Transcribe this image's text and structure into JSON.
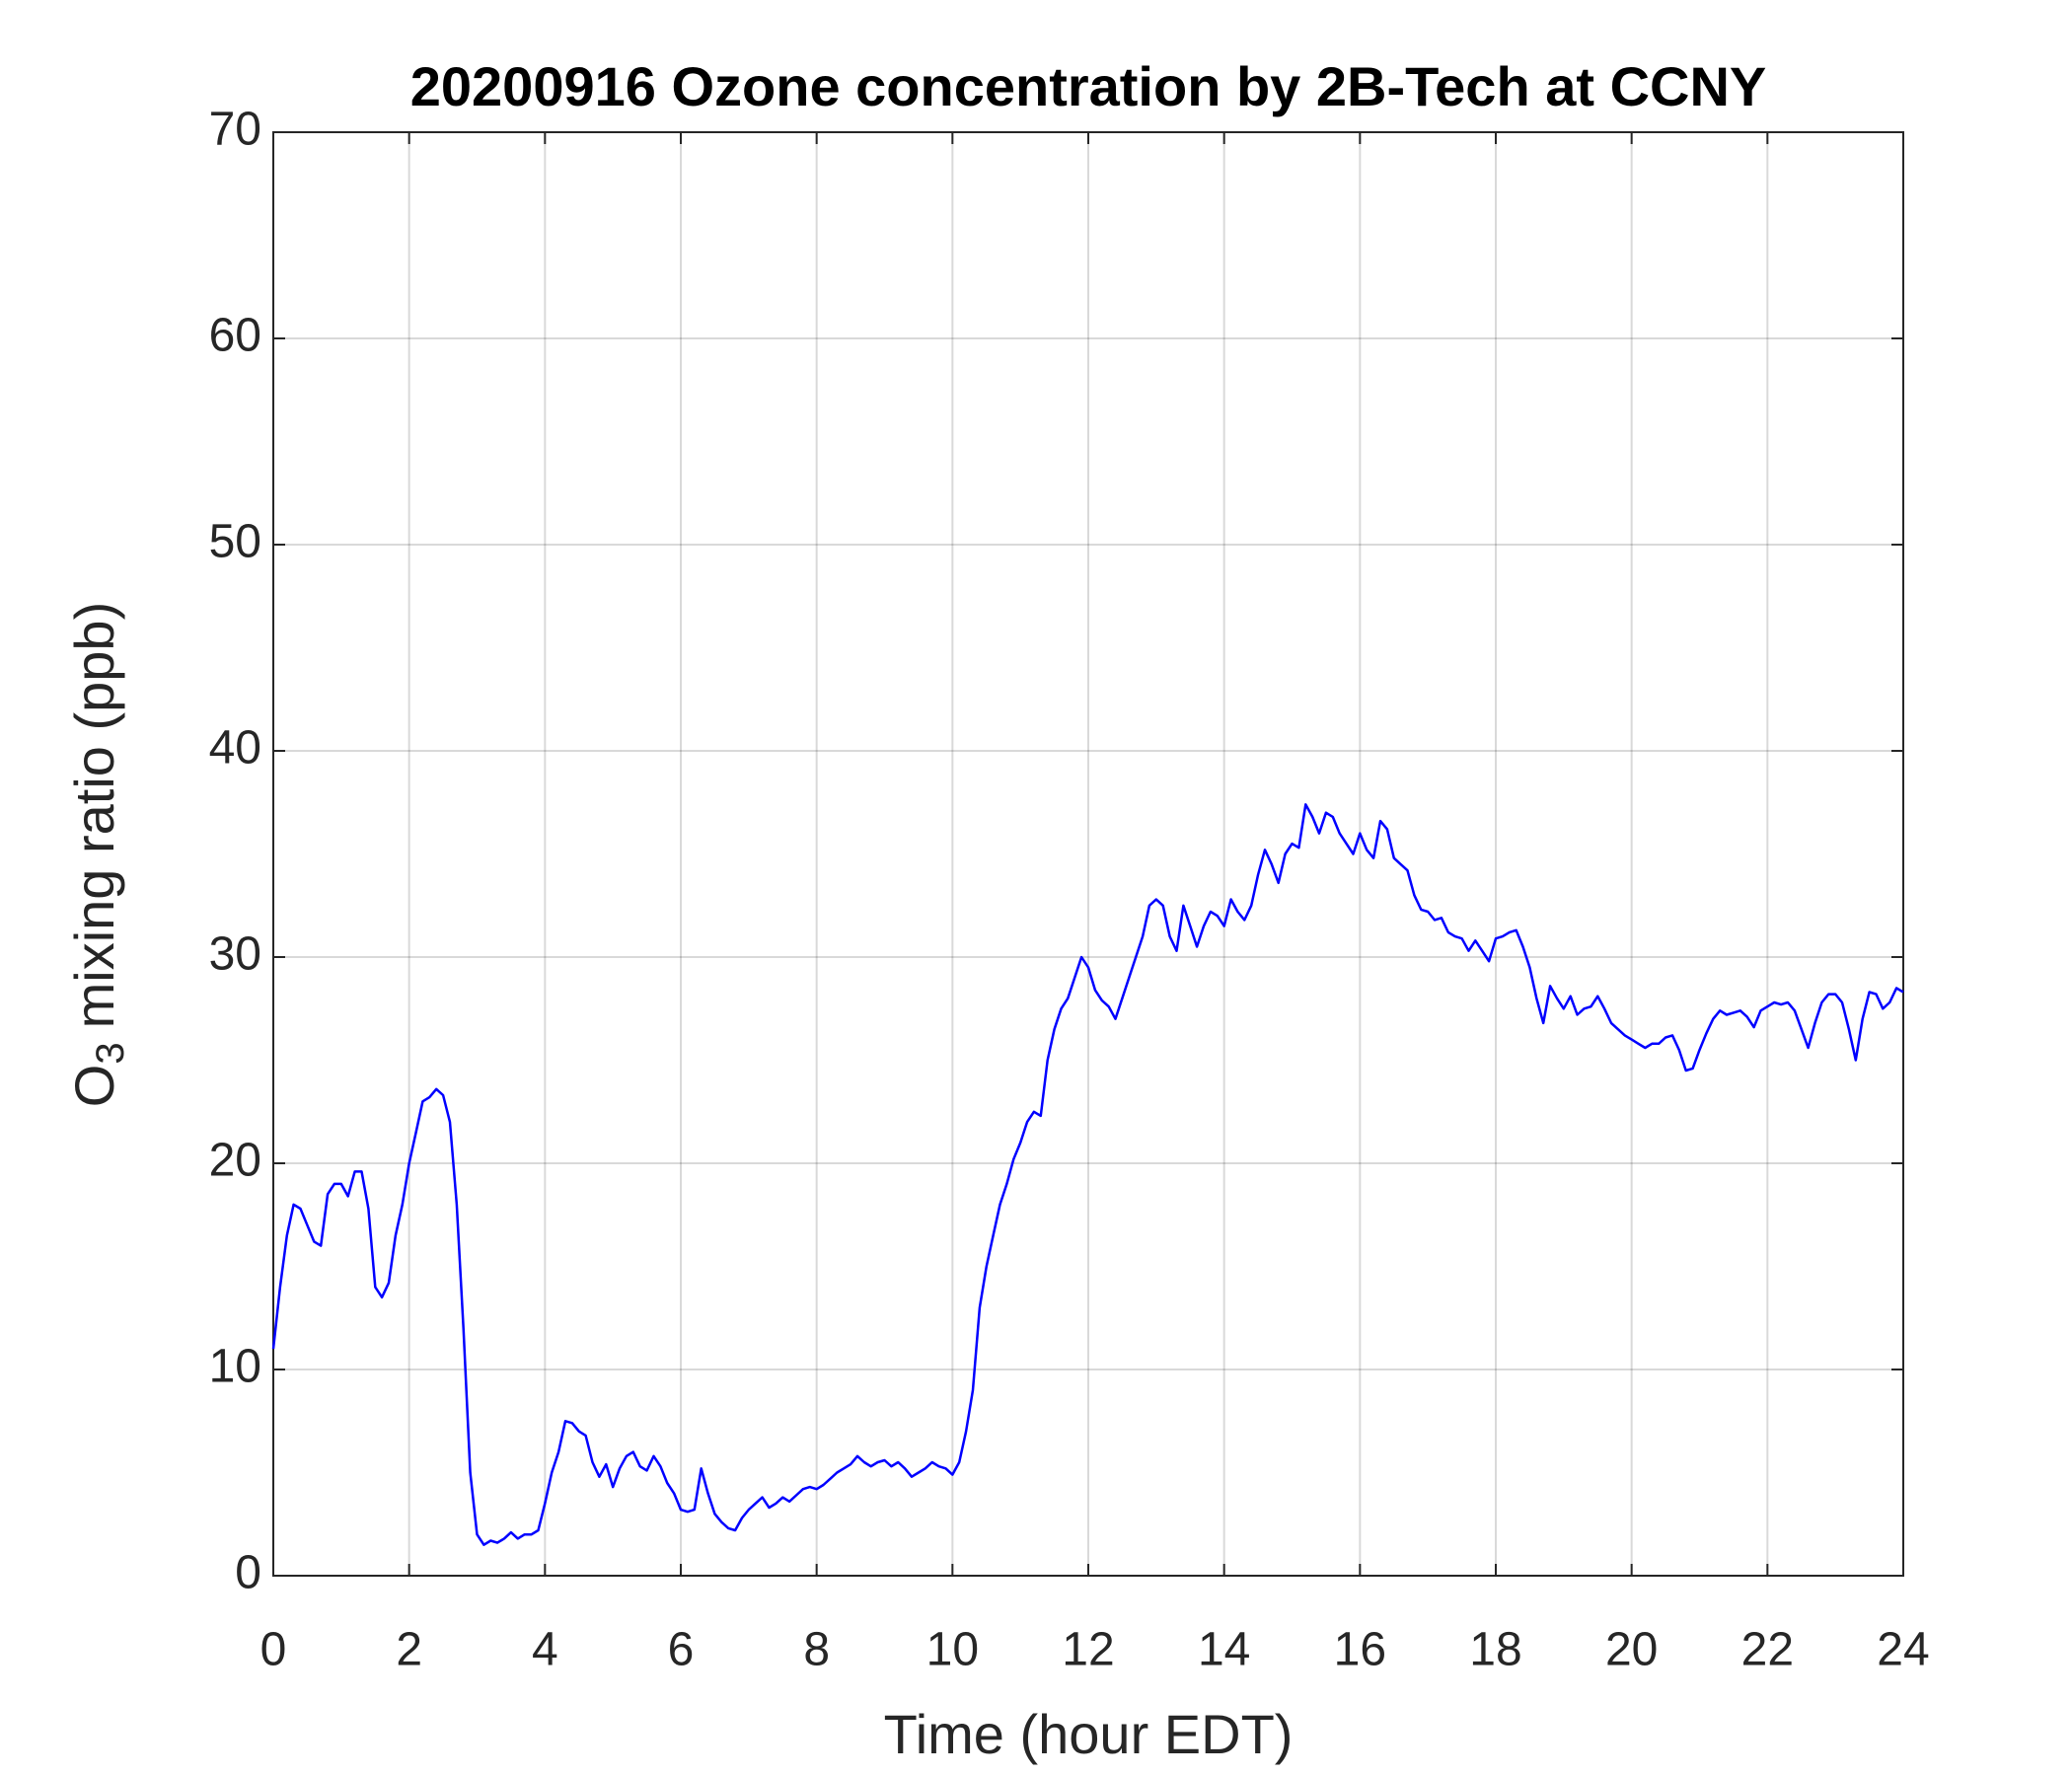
{
  "chart_data": {
    "type": "line",
    "title": "20200916 Ozone concentration by 2B-Tech at CCNY",
    "xlabel": "Time (hour EDT)",
    "ylabel": {
      "base": "O",
      "subscript": "3",
      "rest": "mixing ratio (ppb)"
    },
    "color": "#0000ff",
    "xlim": [
      0,
      24
    ],
    "xticks": [
      0,
      2,
      4,
      6,
      8,
      10,
      12,
      14,
      16,
      18,
      20,
      22,
      24
    ],
    "ylim": [
      0,
      70
    ],
    "yticks": [
      0,
      10,
      20,
      30,
      40,
      50,
      60,
      70
    ],
    "grid": true,
    "x": [
      0,
      0.1,
      0.2,
      0.3,
      0.4,
      0.5,
      0.6,
      0.7,
      0.8,
      0.9,
      1,
      1.1,
      1.2,
      1.3,
      1.4,
      1.5,
      1.6,
      1.7,
      1.8,
      1.9,
      2,
      2.1,
      2.2,
      2.3,
      2.4,
      2.5,
      2.6,
      2.7,
      2.8,
      2.9,
      3,
      3.1,
      3.2,
      3.3,
      3.4,
      3.5,
      3.6,
      3.7,
      3.8,
      3.9,
      4,
      4.1,
      4.2,
      4.3,
      4.4,
      4.5,
      4.6,
      4.7,
      4.8,
      4.9,
      5,
      5.1,
      5.2,
      5.3,
      5.4,
      5.5,
      5.6,
      5.7,
      5.8,
      5.9,
      6,
      6.1,
      6.2,
      6.3,
      6.4,
      6.5,
      6.6,
      6.7,
      6.8,
      6.9,
      7,
      7.1,
      7.2,
      7.3,
      7.4,
      7.5,
      7.6,
      7.7,
      7.8,
      7.9,
      8,
      8.1,
      8.2,
      8.3,
      8.4,
      8.5,
      8.6,
      8.7,
      8.8,
      8.9,
      9,
      9.1,
      9.2,
      9.3,
      9.4,
      9.5,
      9.6,
      9.7,
      9.8,
      9.9,
      10,
      10.1,
      10.2,
      10.3,
      10.4,
      10.5,
      10.6,
      10.7,
      10.8,
      10.9,
      11,
      11.1,
      11.2,
      11.3,
      11.4,
      11.5,
      11.6,
      11.7,
      11.8,
      11.9,
      12,
      12.1,
      12.2,
      12.3,
      12.4,
      12.5,
      12.6,
      12.7,
      12.8,
      12.9,
      13,
      13.1,
      13.2,
      13.3,
      13.4,
      13.5,
      13.6,
      13.7,
      13.8,
      13.9,
      14,
      14.1,
      14.2,
      14.3,
      14.4,
      14.5,
      14.6,
      14.7,
      14.8,
      14.9,
      15,
      15.1,
      15.2,
      15.3,
      15.4,
      15.5,
      15.6,
      15.7,
      15.8,
      15.9,
      16,
      16.1,
      16.2,
      16.3,
      16.4,
      16.5,
      16.6,
      16.7,
      16.8,
      16.9,
      17,
      17.1,
      17.2,
      17.3,
      17.4,
      17.5,
      17.6,
      17.7,
      17.8,
      17.9,
      18,
      18.1,
      18.2,
      18.3,
      18.4,
      18.5,
      18.6,
      18.7,
      18.8,
      18.9,
      19,
      19.1,
      19.2,
      19.3,
      19.4,
      19.5,
      19.6,
      19.7,
      19.8,
      19.9,
      20,
      20.1,
      20.2,
      20.3,
      20.4,
      20.5,
      20.6,
      20.7,
      20.8,
      20.9,
      21,
      21.1,
      21.2,
      21.3,
      21.4,
      21.5,
      21.6,
      21.7,
      21.8,
      21.9,
      22,
      22.1,
      22.2,
      22.3,
      22.4,
      22.5,
      22.6,
      22.7,
      22.8,
      22.9,
      23,
      23.1,
      23.2,
      23.3,
      23.4,
      23.5,
      23.6,
      23.7,
      23.8,
      23.9,
      24
    ],
    "values": [
      11,
      14,
      16.5,
      18,
      17.8,
      17,
      16.2,
      16,
      18.5,
      19,
      19,
      18.4,
      19.6,
      19.6,
      17.8,
      14,
      13.5,
      14.2,
      16.5,
      18,
      20,
      21.5,
      23,
      23.2,
      23.6,
      23.3,
      22,
      18,
      12,
      5,
      2,
      1.5,
      1.7,
      1.6,
      1.8,
      2.1,
      1.8,
      2,
      2,
      2.2,
      3.5,
      5,
      6,
      7.5,
      7.4,
      7,
      6.8,
      5.5,
      4.8,
      5.4,
      4.3,
      5.2,
      5.8,
      6,
      5.3,
      5.1,
      5.8,
      5.3,
      4.5,
      4,
      3.2,
      3.1,
      3.2,
      5.2,
      4,
      3,
      2.6,
      2.3,
      2.2,
      2.8,
      3.2,
      3.5,
      3.8,
      3.3,
      3.5,
      3.8,
      3.6,
      3.9,
      4.2,
      4.3,
      4.2,
      4.4,
      4.7,
      5,
      5.2,
      5.4,
      5.8,
      5.5,
      5.3,
      5.5,
      5.6,
      5.3,
      5.5,
      5.2,
      4.8,
      5,
      5.2,
      5.5,
      5.3,
      5.2,
      4.9,
      5.5,
      7,
      9,
      13,
      15,
      16.5,
      18,
      19,
      20.2,
      21,
      22,
      22.5,
      22.3,
      25,
      26.5,
      27.5,
      28,
      29,
      30,
      29.5,
      28.4,
      27.9,
      27.6,
      27,
      28,
      29,
      30,
      31,
      32.5,
      32.8,
      32.5,
      31,
      30.3,
      32.5,
      31.5,
      30.5,
      31.5,
      32.2,
      32,
      31.5,
      32.8,
      32.2,
      31.8,
      32.5,
      34,
      35.2,
      34.5,
      33.6,
      35,
      35.5,
      35.3,
      37.4,
      36.8,
      36,
      37,
      36.8,
      36,
      35.5,
      35,
      36,
      35.2,
      34.8,
      36.6,
      36.2,
      34.8,
      34.5,
      34.2,
      33,
      32.3,
      32.2,
      31.8,
      31.9,
      31.2,
      31,
      30.9,
      30.3,
      30.8,
      30.3,
      29.8,
      30.9,
      31,
      31.2,
      31.3,
      30.5,
      29.5,
      28,
      26.8,
      28.6,
      28,
      27.5,
      28.1,
      27.2,
      27.5,
      27.6,
      28.1,
      27.5,
      26.8,
      26.5,
      26.2,
      26,
      25.8,
      25.6,
      25.8,
      25.8,
      26.1,
      26.2,
      25.5,
      24.5,
      24.6,
      25.5,
      26.3,
      27,
      27.4,
      27.2,
      27.3,
      27.4,
      27.1,
      26.6,
      27.4,
      27.6,
      27.8,
      27.7,
      27.8,
      27.4,
      26.5,
      25.6,
      26.8,
      27.8,
      28.2,
      28.2,
      27.8,
      26.5,
      25,
      27,
      28.3,
      28.2,
      27.5,
      27.8,
      28.5,
      28.3
    ]
  }
}
